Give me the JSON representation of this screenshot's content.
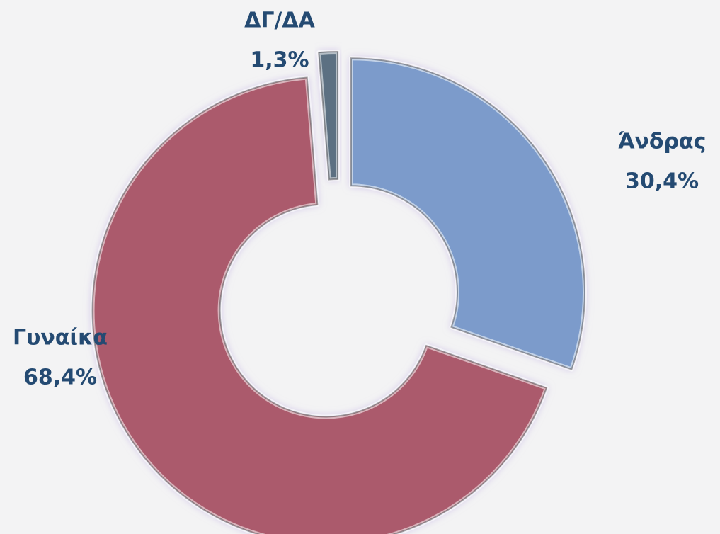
{
  "chart_data": {
    "type": "donut",
    "categories": [
      "Άνδρας",
      "Γυναίκα",
      "ΔΓ/ΔΑ"
    ],
    "values": [
      30.4,
      68.4,
      1.3
    ],
    "value_labels": [
      "30,4%",
      "68,4%",
      "1,3%"
    ],
    "colors": [
      "#7b9bcb",
      "#ab5a6c",
      "#5b7082"
    ]
  }
}
